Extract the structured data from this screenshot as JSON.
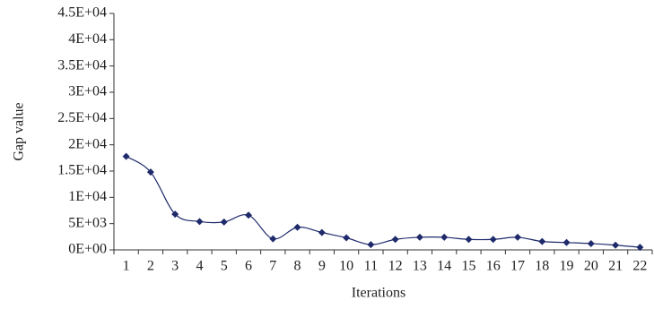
{
  "chart_data": {
    "type": "line",
    "x_label": "Iterations",
    "y_label": "Gap value",
    "categories": [
      "1",
      "2",
      "3",
      "4",
      "5",
      "6",
      "7",
      "8",
      "9",
      "10",
      "11",
      "12",
      "13",
      "14",
      "15",
      "16",
      "17",
      "18",
      "19",
      "20",
      "21",
      "22"
    ],
    "values": [
      17800,
      14800,
      6800,
      5400,
      5300,
      6600,
      2100,
      4300,
      3300,
      2300,
      1000,
      2000,
      2400,
      2400,
      2000,
      2000,
      2400,
      1600,
      1400,
      1200,
      900,
      500
    ],
    "color": "#1f2a6b",
    "ylim": [
      0,
      45000
    ],
    "yticks": [
      {
        "value": 0,
        "label": "0E+00"
      },
      {
        "value": 5000,
        "label": "5E+03"
      },
      {
        "value": 10000,
        "label": "1E+04"
      },
      {
        "value": 15000,
        "label": "1.5E+04"
      },
      {
        "value": 20000,
        "label": "2E+04"
      },
      {
        "value": 25000,
        "label": "2.5E+04"
      },
      {
        "value": 30000,
        "label": "3E+04"
      },
      {
        "value": 35000,
        "label": "3.5E+04"
      },
      {
        "value": 40000,
        "label": "4E+04"
      },
      {
        "value": 45000,
        "label": "4.5E+04"
      }
    ],
    "grid": false
  }
}
